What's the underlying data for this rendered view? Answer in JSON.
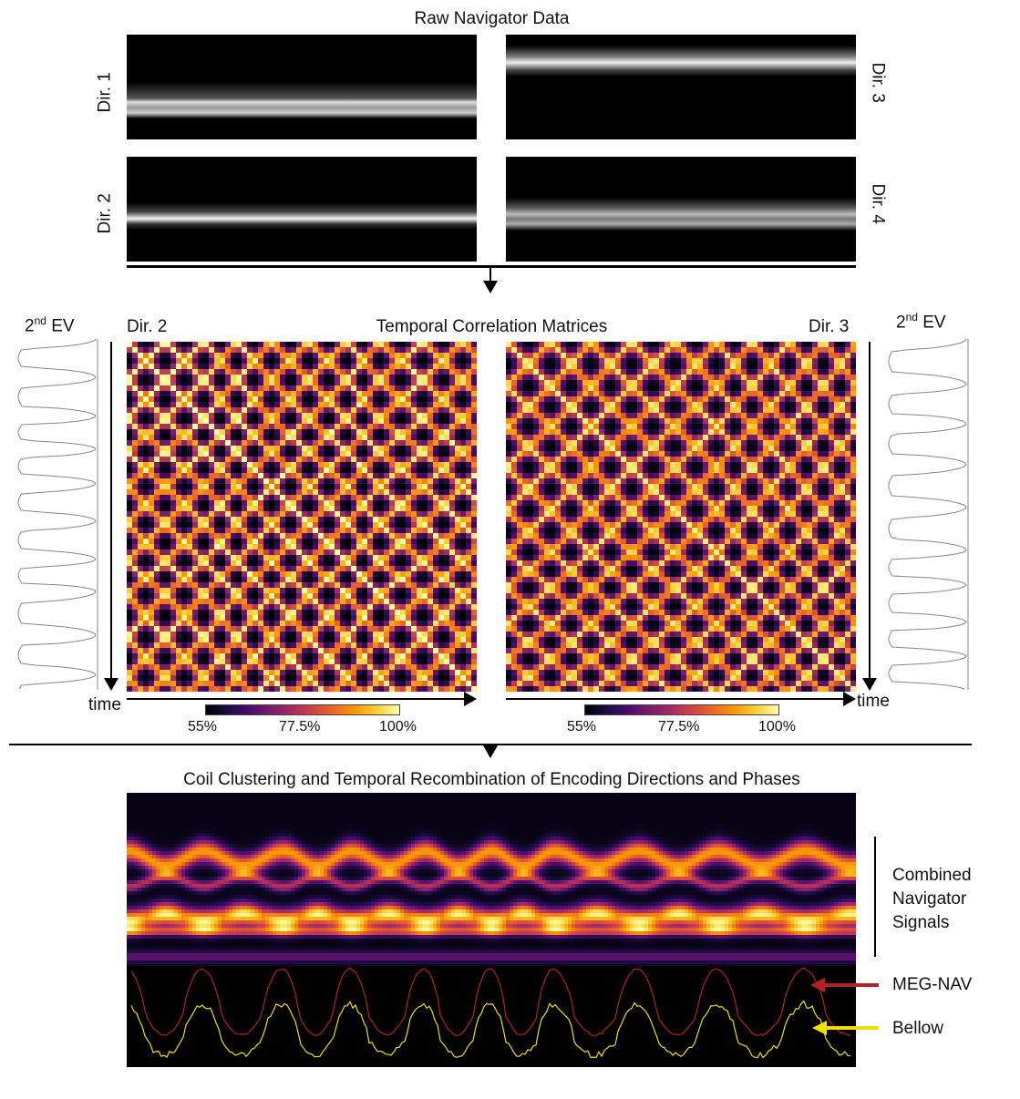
{
  "titles": {
    "raw": "Raw Navigator Data",
    "corr": "Temporal Correlation Matrices",
    "cluster": "Coil Clustering and Temporal Recombination of Encoding Directions and Phases"
  },
  "raw_panels": {
    "dir1": "Dir. 1",
    "dir2": "Dir. 2",
    "dir3": "Dir. 3",
    "dir4": "Dir. 4"
  },
  "corr_panels": {
    "left_dir": "Dir. 2",
    "right_dir": "Dir. 3",
    "ev_main": "2",
    "ev_sup": "nd",
    "ev_suffix": " EV",
    "time_label": "time"
  },
  "colorbar": {
    "min": "55%",
    "mid": "77.5%",
    "max": "100%"
  },
  "combined": {
    "label_line1": "Combined",
    "label_line2": "Navigator",
    "label_line3": "Signals",
    "meg_nav": "MEG-NAV",
    "bellow": "Bellow"
  },
  "colors": {
    "meg_nav": "#b22222",
    "bellow": "#f0e000",
    "raw_band": "#d8d8d8"
  }
}
